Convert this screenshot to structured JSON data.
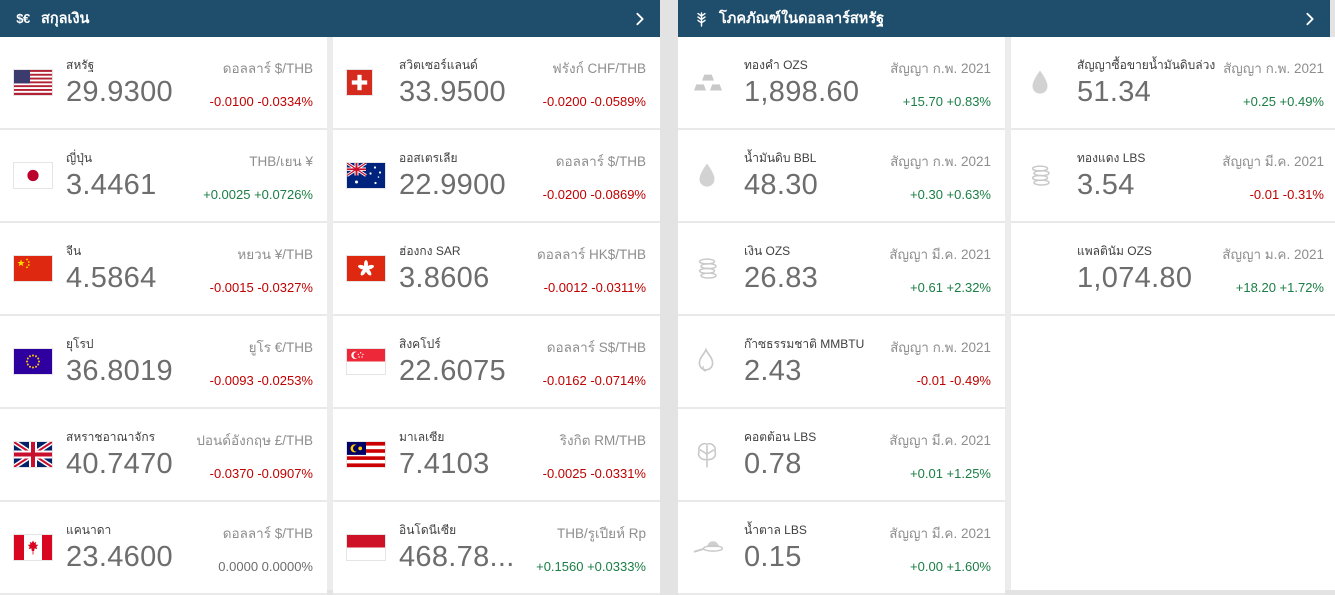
{
  "colors": {
    "header_bg": "#1f4e6d",
    "up": "#1a7e45",
    "down": "#c00000",
    "neutral": "#6d6d6d"
  },
  "panels": {
    "currencies": {
      "title": "สกุลเงิน",
      "header_icon": "currency-symbols-icon",
      "chevron_icon": "chevron-right-icon",
      "columns": [
        [
          {
            "name": "สหรัฐ",
            "value": "29.9300",
            "unit": "ดอลลาร์ $/THB",
            "change": "-0.0100 -0.0334%",
            "direction": "down",
            "icon": "us-flag-icon"
          },
          {
            "name": "ญี่ปุ่น",
            "value": "3.4461",
            "unit": "THB/เยน ¥",
            "change": "+0.0025 +0.0726%",
            "direction": "up",
            "icon": "japan-flag-icon"
          },
          {
            "name": "จีน",
            "value": "4.5864",
            "unit": "หยวน ¥/THB",
            "change": "-0.0015 -0.0327%",
            "direction": "down",
            "icon": "china-flag-icon"
          },
          {
            "name": "ยุโรป",
            "value": "36.8019",
            "unit": "ยูโร €/THB",
            "change": "-0.0093 -0.0253%",
            "direction": "down",
            "icon": "eu-flag-icon"
          },
          {
            "name": "สหราชอาณาจักร",
            "value": "40.7470",
            "unit": "ปอนด์อังกฤษ £/THB",
            "change": "-0.0370 -0.0907%",
            "direction": "down",
            "icon": "uk-flag-icon"
          },
          {
            "name": "แคนาดา",
            "value": "23.4600",
            "unit": "ดอลลาร์ $/THB",
            "change": "0.0000 0.0000%",
            "direction": "flat",
            "icon": "canada-flag-icon"
          }
        ],
        [
          {
            "name": "สวิตเซอร์แลนด์",
            "value": "33.9500",
            "unit": "ฟรังก์ CHF/THB",
            "change": "-0.0200 -0.0589%",
            "direction": "down",
            "icon": "switzerland-flag-icon"
          },
          {
            "name": "ออสเตรเลีย",
            "value": "22.9900",
            "unit": "ดอลลาร์ $/THB",
            "change": "-0.0200 -0.0869%",
            "direction": "down",
            "icon": "australia-flag-icon"
          },
          {
            "name": "ฮ่องกง SAR",
            "value": "3.8606",
            "unit": "ดอลลาร์ HK$/THB",
            "change": "-0.0012 -0.0311%",
            "direction": "down",
            "icon": "hong-kong-flag-icon"
          },
          {
            "name": "สิงคโปร์",
            "value": "22.6075",
            "unit": "ดอลลาร์ S$/THB",
            "change": "-0.0162 -0.0714%",
            "direction": "down",
            "icon": "singapore-flag-icon"
          },
          {
            "name": "มาเลเซีย",
            "value": "7.4103",
            "unit": "ริงกิต RM/THB",
            "change": "-0.0025 -0.0331%",
            "direction": "down",
            "icon": "malaysia-flag-icon"
          },
          {
            "name": "อินโดนีเซีย",
            "value": "468.78...",
            "unit": "THB/รูเปียห์ Rp",
            "change": "+0.1560 +0.0333%",
            "direction": "up",
            "icon": "indonesia-flag-icon"
          }
        ]
      ]
    },
    "commodities": {
      "title": "โภคภัณฑ์ในดอลลาร์สหรัฐ",
      "header_icon": "wheat-icon",
      "chevron_icon": "chevron-right-icon",
      "columns": [
        [
          {
            "name": "ทองคำ OZS",
            "value": "1,898.60",
            "unit": "สัญญา ก.พ. 2021",
            "change": "+15.70 +0.83%",
            "direction": "up",
            "icon": "gold-bars-icon"
          },
          {
            "name": "น้ำมันดิบ BBL",
            "value": "48.30",
            "unit": "สัญญา ก.พ. 2021",
            "change": "+0.30 +0.63%",
            "direction": "up",
            "icon": "oil-drop-icon"
          },
          {
            "name": "เงิน OZS",
            "value": "26.83",
            "unit": "สัญญา มี.ค. 2021",
            "change": "+0.61 +2.32%",
            "direction": "up",
            "icon": "coin-stack-icon"
          },
          {
            "name": "ก๊าซธรรมชาติ MMBTU",
            "value": "2.43",
            "unit": "สัญญา ก.พ. 2021",
            "change": "-0.01 -0.49%",
            "direction": "down",
            "icon": "flame-icon"
          },
          {
            "name": "คอตต้อน LBS",
            "value": "0.78",
            "unit": "สัญญา มี.ค. 2021",
            "change": "+0.01 +1.25%",
            "direction": "up",
            "icon": "cotton-icon"
          },
          {
            "name": "น้ำตาล LBS",
            "value": "0.15",
            "unit": "สัญญา มี.ค. 2021",
            "change": "+0.00 +1.60%",
            "direction": "up",
            "icon": "sugar-spoon-icon"
          }
        ],
        [
          {
            "name": "สัญญาซื้อขายน้ำมันดิบล่วง...",
            "value": "51.34",
            "unit": "สัญญา ก.พ. 2021",
            "change": "+0.25 +0.49%",
            "direction": "up",
            "icon": "oil-drop-icon"
          },
          {
            "name": "ทองแดง LBS",
            "value": "3.54",
            "unit": "สัญญา มี.ค. 2021",
            "change": "-0.01 -0.31%",
            "direction": "down",
            "icon": "coin-stack-icon"
          },
          {
            "name": "แพลตินัม OZS",
            "value": "1,074.80",
            "unit": "สัญญา ม.ค. 2021",
            "change": "+18.20 +1.72%",
            "direction": "up",
            "icon": null
          }
        ]
      ]
    }
  }
}
